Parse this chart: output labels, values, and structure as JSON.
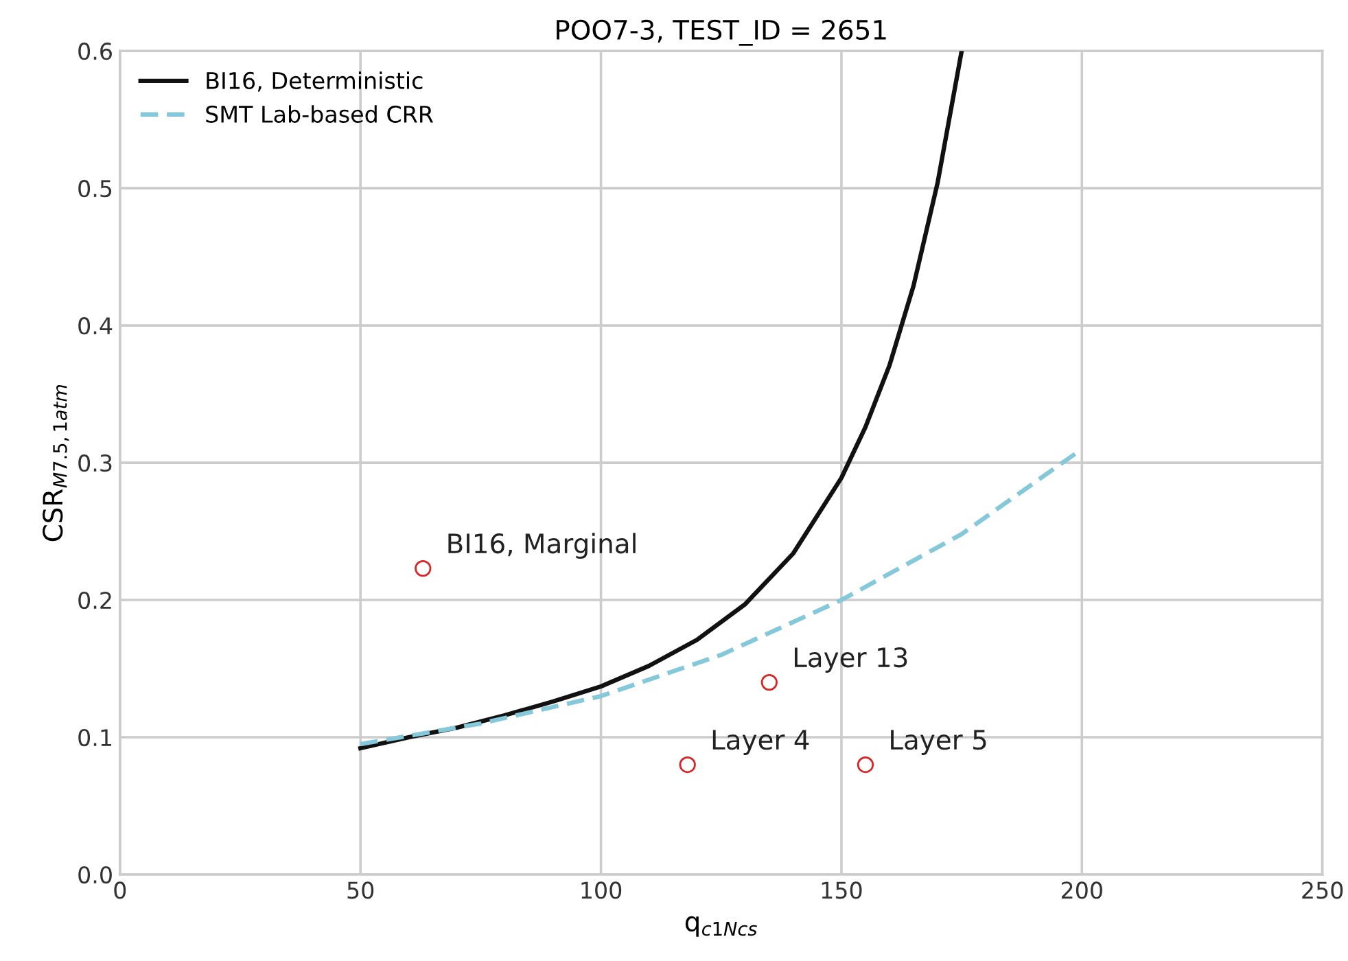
{
  "chart_data": {
    "type": "line",
    "title": "POO7-3, TEST_ID = 2651",
    "xlabel": "q$_{c1Ncs}$",
    "ylabel": "CSR$_{M7.5,1atm}$",
    "xlim": [
      0,
      250
    ],
    "ylim": [
      0,
      0.6
    ],
    "xticks": [
      0,
      50,
      100,
      150,
      200,
      250
    ],
    "yticks": [
      {
        "value": 0,
        "label": "0.0"
      },
      0.1,
      0.2,
      0.3,
      0.4,
      0.5,
      0.6
    ],
    "grid": true,
    "legend": "top left",
    "series": [
      {
        "name": "BI16, Deterministic",
        "type": "line",
        "color": "#111111",
        "line_style": "solid",
        "x": [
          50,
          60,
          70,
          80,
          90,
          100,
          110,
          120,
          130,
          140,
          150,
          155,
          160,
          165,
          170,
          175
        ],
        "values": [
          0.092,
          0.1,
          0.107,
          0.116,
          0.126,
          0.137,
          0.152,
          0.171,
          0.197,
          0.234,
          0.289,
          0.326,
          0.371,
          0.429,
          0.504,
          0.6
        ]
      },
      {
        "name": "SMT Lab-based CRR",
        "type": "line",
        "color": "#84c8da",
        "line_style": "dashed",
        "x": [
          50,
          75,
          100,
          125,
          150,
          175,
          200
        ],
        "values": [
          0.095,
          0.11,
          0.13,
          0.16,
          0.2,
          0.248,
          0.31
        ]
      },
      {
        "type": "scatter",
        "color": "#d62728",
        "marker": "circle",
        "x": [
          63,
          118,
          135,
          155
        ],
        "values": [
          0.223,
          0.08,
          0.14,
          0.08
        ]
      }
    ],
    "annotations": [
      {
        "text": "BI16, Marginal",
        "x": 63,
        "y": 0.223
      },
      {
        "text": "Layer 4",
        "x": 118,
        "y": 0.08
      },
      {
        "text": "Layer 13",
        "x": 135,
        "y": 0.14
      },
      {
        "text": "Layer 5",
        "x": 155,
        "y": 0.08
      }
    ]
  }
}
